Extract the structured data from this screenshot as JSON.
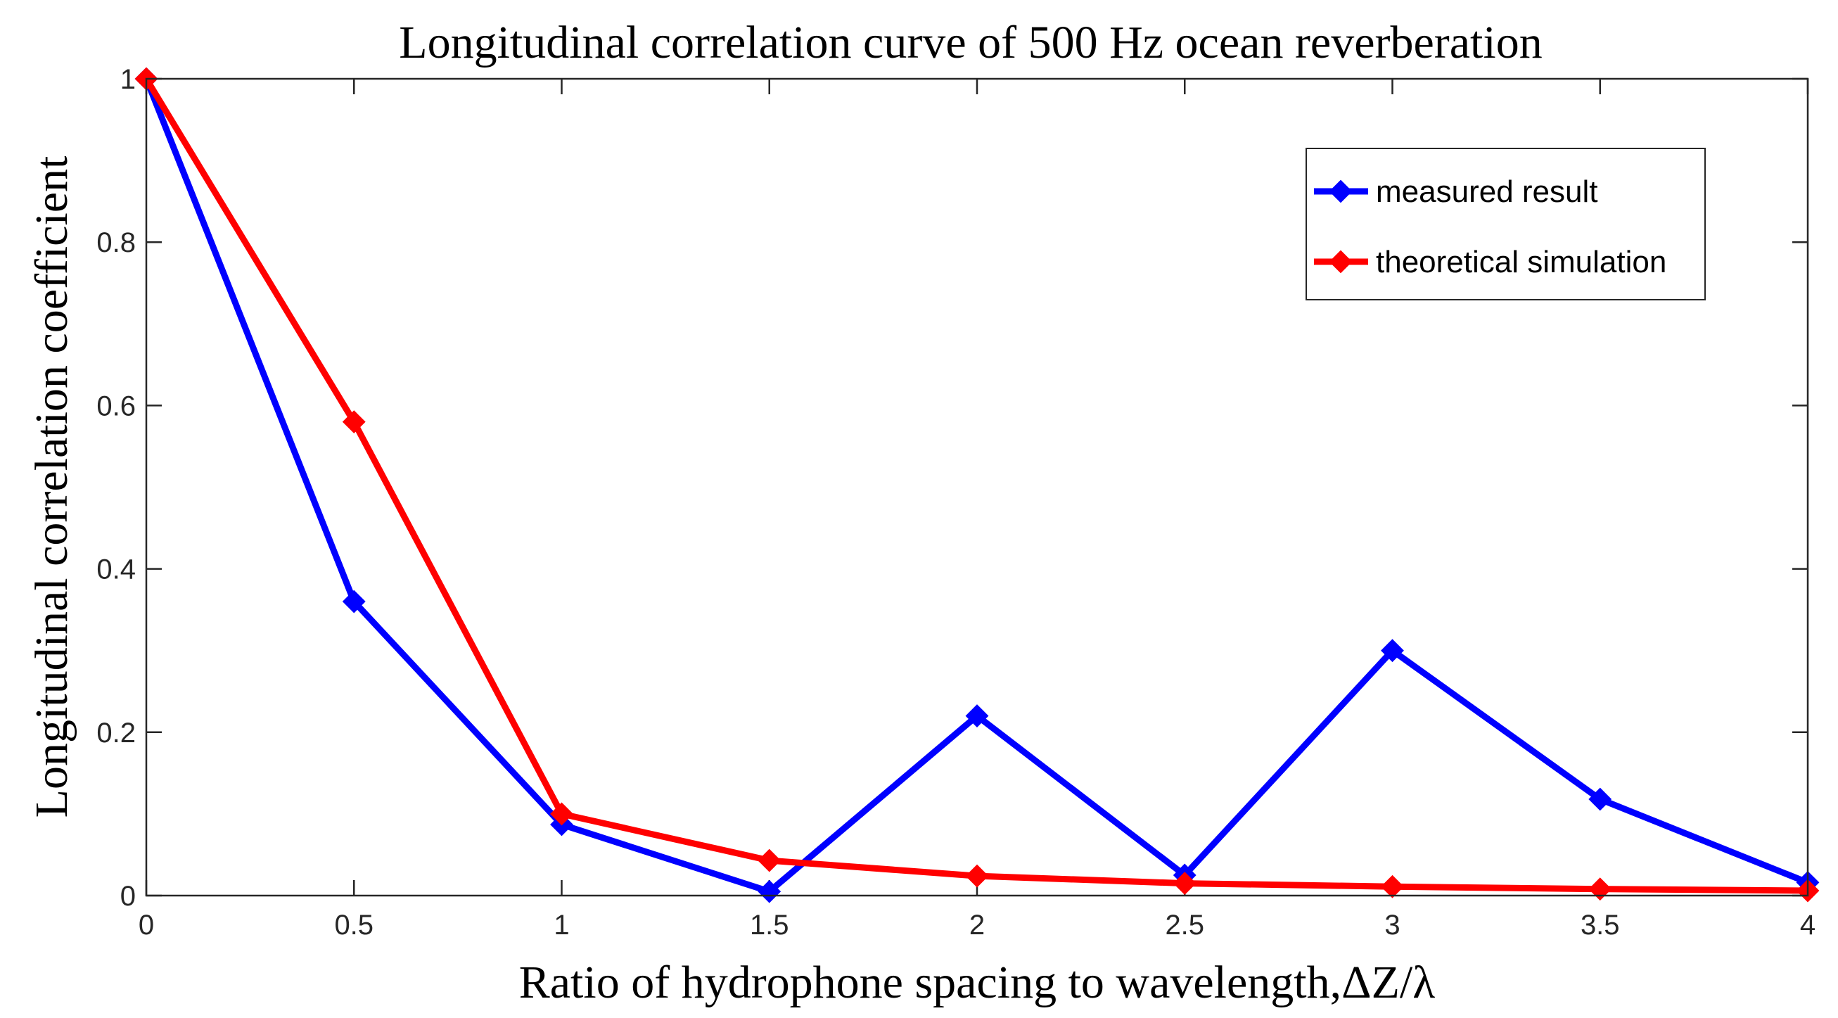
{
  "chart_data": {
    "type": "line",
    "title": "Longitudinal correlation curve of 500 Hz ocean reverberation",
    "xlabel": "Ratio of hydrophone spacing to wavelength,ΔZ/λ",
    "ylabel": "Longitudinal correlation coefficient",
    "xlim": [
      0,
      4
    ],
    "ylim": [
      0,
      1
    ],
    "x": [
      0,
      0.5,
      1,
      1.5,
      2,
      2.5,
      3,
      3.5,
      4
    ],
    "xticks": [
      "0",
      "0.5",
      "1",
      "1.5",
      "2",
      "2.5",
      "3",
      "3.5",
      "4"
    ],
    "yticks": [
      "0",
      "0.2",
      "0.4",
      "0.6",
      "0.8",
      "1"
    ],
    "grid": false,
    "legend_position": "top-right",
    "series": [
      {
        "name": "measured result",
        "color": "#0000ff",
        "marker": "diamond",
        "values": [
          1.0,
          0.36,
          0.087,
          0.005,
          0.22,
          0.025,
          0.3,
          0.118,
          0.016
        ]
      },
      {
        "name": "theoretical simulation",
        "color": "#ff0000",
        "marker": "diamond",
        "values": [
          1.0,
          0.58,
          0.1,
          0.043,
          0.024,
          0.015,
          0.011,
          0.008,
          0.006
        ]
      }
    ]
  }
}
